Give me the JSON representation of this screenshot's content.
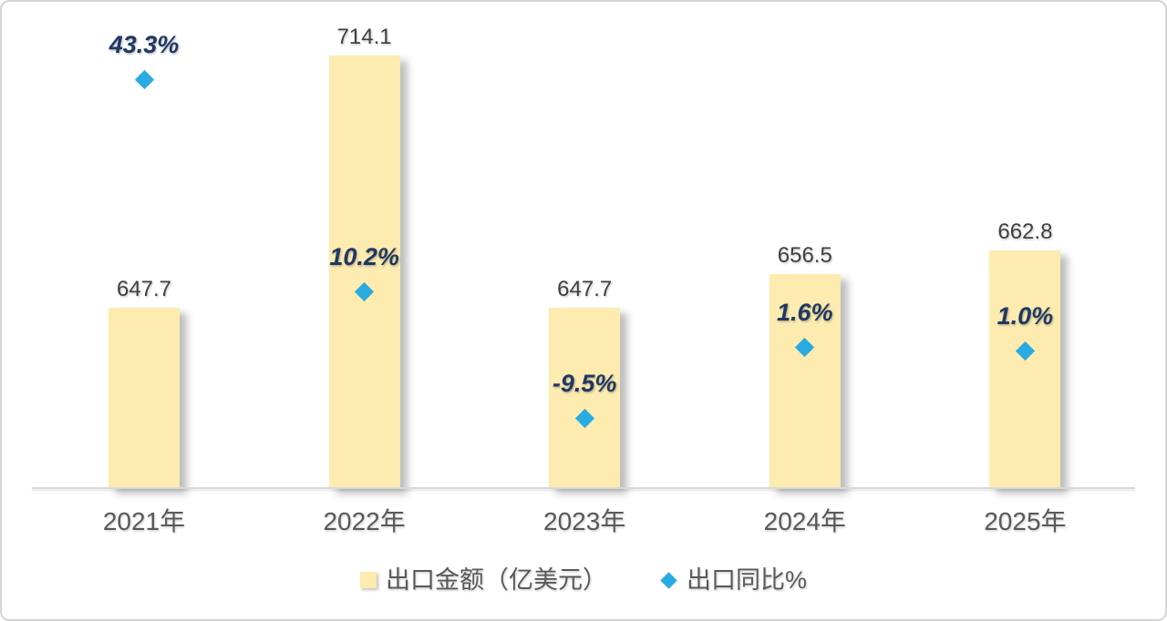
{
  "chart_data": {
    "type": "bar",
    "categories": [
      "2021年",
      "2022年",
      "2023年",
      "2024年",
      "2025年"
    ],
    "series": [
      {
        "name": "出口金额（亿美元）",
        "type": "bar",
        "values": [
          647.7,
          714.1,
          647.7,
          656.5,
          662.8
        ],
        "labels": [
          "647.7",
          "714.1",
          "647.7",
          "656.5",
          "662.8"
        ],
        "color": "#fdebb0"
      },
      {
        "name": "出口同比%",
        "type": "scatter",
        "marker": "diamond",
        "values": [
          43.3,
          10.2,
          -9.5,
          1.6,
          1.0
        ],
        "labels": [
          "43.3%",
          "10.2%",
          "-9.5%",
          "1.6%",
          "1.0%"
        ],
        "color": "#29abe2",
        "label_color": "#1f3864"
      }
    ],
    "title": "",
    "xlabel": "",
    "ylabel": "",
    "bar_axis_min_implied": 600,
    "grid": false,
    "legend_position": "bottom"
  },
  "colors": {
    "background": "#ffffff",
    "frame_border": "#d6d6d6",
    "bar_fill": "#fdebb0",
    "diamond_fill": "#29abe2",
    "pct_label": "#1f3864",
    "value_label": "#404040",
    "axis_text": "#595959",
    "axis_line": "#d9d9d9"
  }
}
